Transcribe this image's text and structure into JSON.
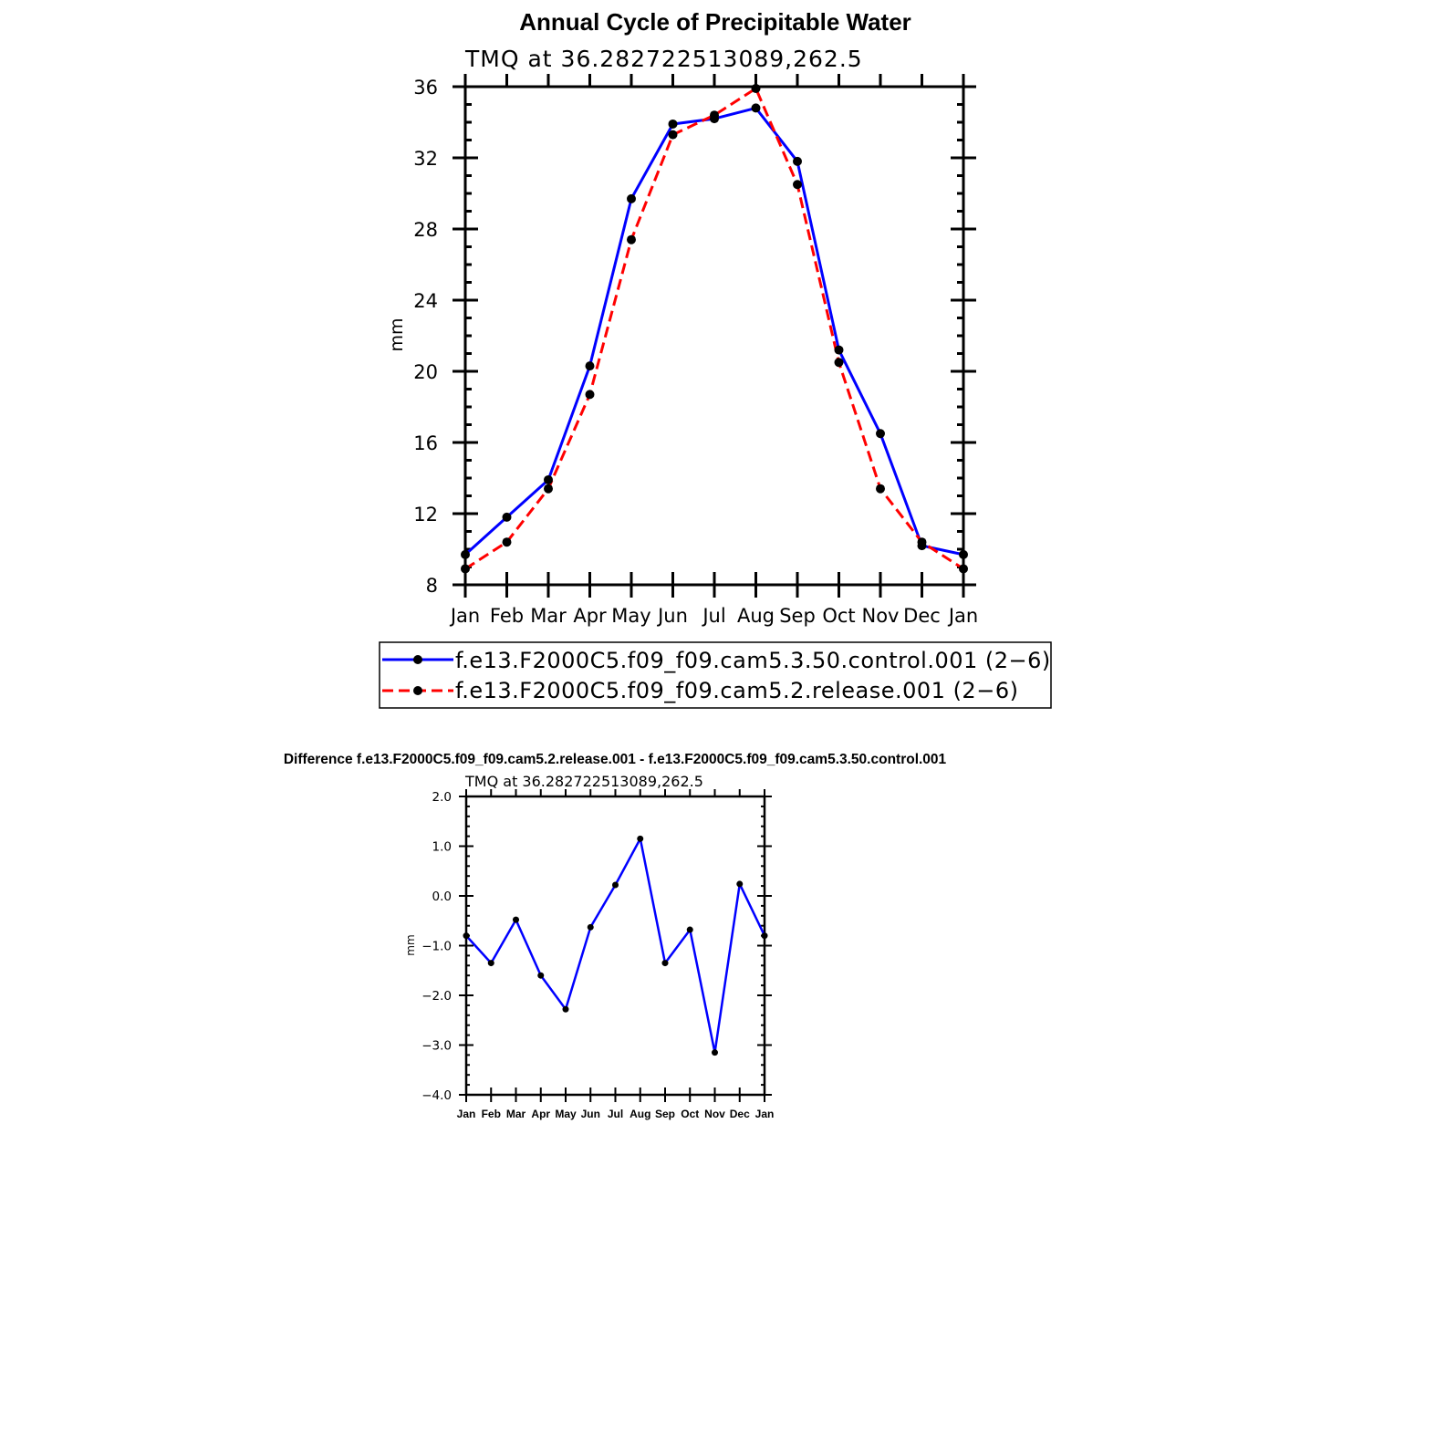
{
  "chart_data": [
    {
      "type": "line",
      "title": "Annual Cycle of Precipitable Water",
      "subtitle": "TMQ  at  36.282722513089,262.5",
      "xlabel": "",
      "ylabel": "mm",
      "categories": [
        "Jan",
        "Feb",
        "Mar",
        "Apr",
        "May",
        "Jun",
        "Jul",
        "Aug",
        "Sep",
        "Oct",
        "Nov",
        "Dec",
        "Jan"
      ],
      "ylim": [
        8,
        36
      ],
      "yticks": [
        "8",
        "12",
        "16",
        "20",
        "24",
        "28",
        "32",
        "36"
      ],
      "ytick_values": [
        8,
        12,
        16,
        20,
        24,
        28,
        32,
        36
      ],
      "series": [
        {
          "name": "f.e13.F2000C5.f09_f09.cam5.3.50.control.001  (2−6)",
          "color": "#0000ff",
          "style": "solid",
          "values": [
            9.7,
            11.8,
            13.9,
            20.3,
            29.7,
            33.9,
            34.2,
            34.8,
            31.8,
            21.2,
            16.5,
            10.2,
            9.7
          ]
        },
        {
          "name": "f.e13.F2000C5.f09_f09.cam5.2.release.001  (2−6)",
          "color": "#ff0000",
          "style": "dashed",
          "values": [
            8.9,
            10.4,
            13.4,
            18.7,
            27.4,
            33.3,
            34.4,
            35.9,
            30.5,
            20.5,
            13.4,
            10.4,
            8.9
          ]
        }
      ],
      "grid": false,
      "legend": "bottom"
    },
    {
      "type": "line",
      "title": "Difference f.e13.F2000C5.f09_f09.cam5.2.release.001 - f.e13.F2000C5.f09_f09.cam5.3.50.control.001",
      "subtitle": "TMQ  at  36.282722513089,262.5",
      "xlabel": "",
      "ylabel": "mm",
      "categories": [
        "Jan",
        "Feb",
        "Mar",
        "Apr",
        "May",
        "Jun",
        "Jul",
        "Aug",
        "Sep",
        "Oct",
        "Nov",
        "Dec",
        "Jan"
      ],
      "ylim": [
        -4,
        2
      ],
      "yticks": [
        "−4.0",
        "−3.0",
        "−2.0",
        "−1.0",
        "0.0",
        "1.0",
        "2.0"
      ],
      "ytick_values": [
        -4,
        -3,
        -2,
        -1,
        0,
        1,
        2
      ],
      "series": [
        {
          "color": "#0000ff",
          "style": "solid",
          "values": [
            -0.8,
            -1.35,
            -0.48,
            -1.6,
            -2.28,
            -0.63,
            0.22,
            1.15,
            -1.35,
            -0.68,
            -3.15,
            0.24,
            -0.8
          ]
        }
      ],
      "grid": false
    }
  ]
}
